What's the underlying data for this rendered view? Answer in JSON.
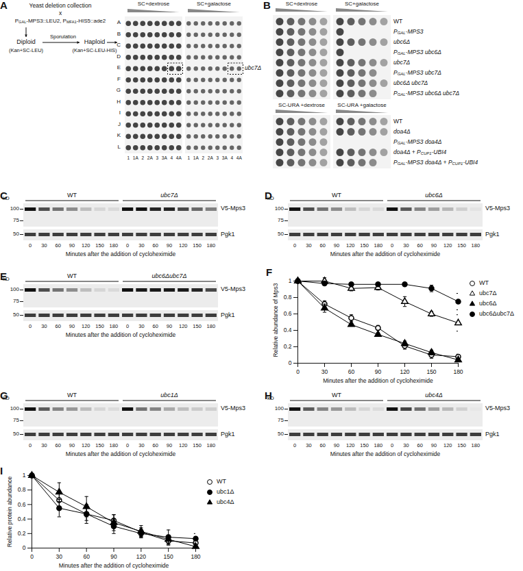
{
  "panels": {
    "A": {
      "letter": "A",
      "parent1": "Yeast deletion collection",
      "cross": "x",
      "parent2": "PGAL-MPS3::LEU2, PMFA1-HIS5::ade2",
      "diploid": "Diploid",
      "diploid_medium": "(Kan+SC-LEU)",
      "step": "Sporulation",
      "haploid": "Haploid",
      "haploid_medium": "(Kan+SC-LEU-HIS)",
      "plates": [
        "SC+dextrose",
        "SC+galactose"
      ],
      "rows": [
        "A",
        "B",
        "C",
        "D",
        "E",
        "F",
        "G",
        "H",
        "I",
        "J",
        "K",
        "L"
      ],
      "columns": [
        "1",
        "1A",
        "2",
        "2A",
        "3",
        "3A",
        "4",
        "4A"
      ],
      "hit": {
        "label": "ubc7Δ",
        "row": "E",
        "columns": [
          "4",
          "4A"
        ]
      }
    },
    "B": {
      "letter": "B",
      "top": {
        "media": [
          "SC+dextrose",
          "SC+galactose"
        ],
        "strains": [
          {
            "name": "WT",
            "growth": [
              5,
              5
            ]
          },
          {
            "name": "PGAL-MPS3",
            "growth": [
              5,
              1
            ]
          },
          {
            "name": "ubc6Δ",
            "growth": [
              5,
              5
            ]
          },
          {
            "name": "PGAL-MPS3 ubc6Δ",
            "growth": [
              5,
              1
            ]
          },
          {
            "name": "ubc7Δ",
            "growth": [
              5,
              5
            ]
          },
          {
            "name": "PGAL-MPS3 ubc7Δ",
            "growth": [
              5,
              4
            ]
          },
          {
            "name": "ubc6Δ ubc7Δ",
            "growth": [
              5,
              5
            ]
          },
          {
            "name": "PGAL-MPS3 ubc6Δ ubc7Δ",
            "growth": [
              5,
              4
            ]
          }
        ]
      },
      "bottom": {
        "media": [
          "SC-URA +dextrose",
          "SC-URA +galactose"
        ],
        "strains": [
          {
            "name": "WT",
            "growth": [
              5,
              5
            ]
          },
          {
            "name": "doa4Δ",
            "growth": [
              5,
              5
            ]
          },
          {
            "name": "PGAL-MPS3 doa4Δ",
            "growth": [
              5,
              0
            ]
          },
          {
            "name": "doa4Δ + PCUP1-UBI4",
            "growth": [
              5,
              5
            ]
          },
          {
            "name": "PGAL-MPS3 doa4Δ + PCUP1-UBI4",
            "growth": [
              5,
              4
            ]
          }
        ]
      }
    },
    "blots": [
      {
        "letter": "C",
        "unit": "kD",
        "groups": [
          "WT",
          "ubc7Δ"
        ],
        "times": [
          0,
          30,
          60,
          90,
          120,
          150,
          180
        ],
        "upper": {
          "label": "V5-Mps3",
          "markers": [
            100,
            75
          ]
        },
        "lower": {
          "label": "Pgk1",
          "markers": [
            50
          ]
        },
        "caption": "Minutes after the addition of cycloheximide"
      },
      {
        "letter": "D",
        "unit": "kD",
        "groups": [
          "WT",
          "ubc6Δ"
        ],
        "times": [
          0,
          30,
          60,
          90,
          120,
          150,
          180
        ],
        "upper": {
          "label": "V5-Mps3",
          "markers": [
            100,
            75
          ]
        },
        "lower": {
          "label": "Pgk1",
          "markers": [
            50
          ]
        },
        "caption": "Minutes after the addition of cycloheximide"
      },
      {
        "letter": "E",
        "unit": "kD",
        "groups": [
          "WT",
          "ubc6Δubc7Δ"
        ],
        "times": [
          0,
          30,
          60,
          90,
          120,
          150,
          180
        ],
        "upper": {
          "label": "V5-Mps3",
          "markers": [
            100,
            75
          ]
        },
        "lower": {
          "label": "Pgk1",
          "markers": [
            50
          ]
        },
        "caption": "Minutes after the addition of cycloheximide"
      },
      {
        "letter": "G",
        "unit": "kD",
        "groups": [
          "WT",
          "ubc1Δ"
        ],
        "times": [
          0,
          30,
          60,
          90,
          120,
          150,
          180
        ],
        "upper": {
          "label": "V5-Mps3",
          "markers": [
            100,
            75
          ]
        },
        "lower": {
          "label": "Pgk1",
          "markers": [
            50
          ]
        },
        "caption": "Minutes after the addition of cycloheximide"
      },
      {
        "letter": "H",
        "unit": "kD",
        "groups": [
          "WT",
          "ubc4Δ"
        ],
        "times": [
          0,
          30,
          60,
          90,
          120,
          150,
          180
        ],
        "upper": {
          "label": "V5-Mps3",
          "markers": [
            100,
            75
          ]
        },
        "lower": {
          "label": "Pgk1",
          "markers": [
            50
          ]
        },
        "caption": "Minutes after the addition of cycloheximide"
      }
    ]
  },
  "chart_data": [
    {
      "panel": "F",
      "type": "line",
      "xlabel": "Minutes after the addition of cycloheximide",
      "ylabel": "Relative abundance of Mps3",
      "x": [
        0,
        30,
        60,
        90,
        120,
        150,
        180
      ],
      "xlim": [
        0,
        180
      ],
      "xticks": [
        0,
        30,
        60,
        90,
        120,
        150,
        180
      ],
      "ylim": [
        0,
        1.05
      ],
      "yticks": [
        0,
        0.2,
        0.4,
        0.6,
        0.8,
        1
      ],
      "legend": "right",
      "series": [
        {
          "name": "WT",
          "color": "#000000",
          "marker": "open-circle",
          "values": [
            1,
            0.72,
            0.55,
            0.43,
            0.21,
            0.1,
            0.08
          ],
          "errors": [
            0,
            0.04,
            0.04,
            0.03,
            0.04,
            0.04,
            0.03
          ]
        },
        {
          "name": "ubc7Δ",
          "color": "#000000",
          "marker": "open-triangle",
          "values": [
            1,
            1.0,
            0.91,
            0.92,
            0.75,
            0.6,
            0.49
          ],
          "errors": [
            0,
            0.04,
            0.03,
            0.03,
            0.06,
            0.03,
            0.1
          ]
        },
        {
          "name": "ubc6Δ",
          "color": "#000000",
          "marker": "triangle",
          "values": [
            1,
            0.67,
            0.47,
            0.35,
            0.24,
            0.13,
            0.04
          ],
          "errors": [
            0,
            0.05,
            0.02,
            0.02,
            0.03,
            0.03,
            0.02
          ]
        },
        {
          "name": "ubc6Δubc7Δ",
          "color": "#000000",
          "marker": "circle",
          "values": [
            1,
            0.97,
            0.96,
            0.96,
            0.96,
            0.91,
            0.75
          ],
          "errors": [
            0,
            0.02,
            0.02,
            0.02,
            0.02,
            0.04,
            0.1
          ]
        }
      ]
    },
    {
      "panel": "I",
      "type": "line",
      "xlabel": "Minutes after the addition of cycloheximide",
      "ylabel": "Relative protein abundance",
      "x": [
        0,
        30,
        60,
        90,
        120,
        150,
        180
      ],
      "xlim": [
        0,
        180
      ],
      "xticks": [
        0,
        30,
        60,
        90,
        120,
        150,
        180
      ],
      "ylim": [
        0,
        1
      ],
      "yticks": [
        0,
        0.2,
        0.4,
        0.6,
        0.8,
        1
      ],
      "legend": "right",
      "series": [
        {
          "name": "WT",
          "color": "#000000",
          "marker": "open-circle",
          "values": [
            1,
            0.66,
            0.47,
            0.38,
            0.22,
            0.1,
            0.07
          ],
          "errors": [
            0,
            0.1,
            0.09,
            0.08,
            0.06,
            0.06,
            0.05
          ]
        },
        {
          "name": "ubc1Δ",
          "color": "#000000",
          "marker": "circle",
          "values": [
            1,
            0.55,
            0.47,
            0.3,
            0.2,
            0.15,
            0.13
          ],
          "errors": [
            0,
            0.12,
            0.13,
            0.1,
            0.06,
            0.1,
            0.07
          ]
        },
        {
          "name": "ubc4Δ",
          "color": "#000000",
          "marker": "triangle",
          "values": [
            1,
            0.77,
            0.57,
            0.35,
            0.23,
            0.12,
            0.02
          ],
          "errors": [
            0,
            0.13,
            0.14,
            0.11,
            0.08,
            0.06,
            0.05
          ]
        }
      ]
    }
  ]
}
